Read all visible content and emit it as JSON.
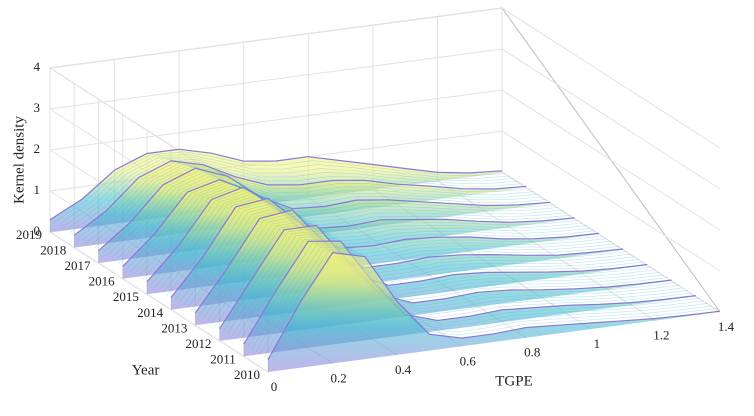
{
  "chart_data": {
    "type": "surface3d",
    "xlabel": "TGPE",
    "ylabel": "Year",
    "zlabel": "Kernel density",
    "x": [
      0,
      0.1,
      0.2,
      0.3,
      0.4,
      0.5,
      0.6,
      0.7,
      0.8,
      0.9,
      1.0,
      1.1,
      1.2,
      1.3,
      1.4
    ],
    "xlim": [
      0,
      1.4
    ],
    "xticks": [
      0,
      0.2,
      0.4,
      0.6,
      0.8,
      1,
      1.2,
      1.4
    ],
    "zlim": [
      0,
      4
    ],
    "zticks": [
      0,
      1,
      2,
      3,
      4
    ],
    "grid": true,
    "colormap": [
      "#8878d8",
      "#3cb8d0",
      "#f4f07a"
    ],
    "series": [
      {
        "name": "2010",
        "values": [
          0.3,
          1.6,
          2.7,
          2.5,
          1.3,
          0.4,
          0.2,
          0.2,
          0.25,
          0.2,
          0.15,
          0.1,
          0.05,
          0.03,
          0.02
        ]
      },
      {
        "name": "2011",
        "values": [
          0.3,
          1.5,
          2.6,
          2.5,
          1.4,
          0.5,
          0.25,
          0.25,
          0.3,
          0.25,
          0.2,
          0.12,
          0.06,
          0.03,
          0.02
        ]
      },
      {
        "name": "2012",
        "values": [
          0.3,
          1.4,
          2.5,
          2.5,
          1.5,
          0.6,
          0.3,
          0.3,
          0.35,
          0.3,
          0.2,
          0.12,
          0.06,
          0.03,
          0.02
        ]
      },
      {
        "name": "2013",
        "values": [
          0.3,
          1.3,
          2.4,
          2.5,
          1.6,
          0.7,
          0.35,
          0.35,
          0.4,
          0.35,
          0.25,
          0.15,
          0.07,
          0.03,
          0.02
        ]
      },
      {
        "name": "2014",
        "values": [
          0.3,
          1.2,
          2.3,
          2.4,
          1.7,
          0.8,
          0.4,
          0.4,
          0.45,
          0.4,
          0.3,
          0.18,
          0.08,
          0.04,
          0.02
        ]
      },
      {
        "name": "2015",
        "values": [
          0.3,
          1.1,
          2.1,
          2.3,
          1.7,
          0.9,
          0.5,
          0.45,
          0.5,
          0.45,
          0.35,
          0.2,
          0.1,
          0.04,
          0.02
        ]
      },
      {
        "name": "2016",
        "values": [
          0.3,
          1.0,
          1.9,
          2.1,
          1.7,
          1.0,
          0.6,
          0.55,
          0.6,
          0.5,
          0.4,
          0.25,
          0.12,
          0.05,
          0.02
        ]
      },
      {
        "name": "2017",
        "values": [
          0.3,
          0.9,
          1.7,
          2.0,
          1.7,
          1.1,
          0.7,
          0.65,
          0.7,
          0.6,
          0.45,
          0.3,
          0.15,
          0.06,
          0.02
        ]
      },
      {
        "name": "2018",
        "values": [
          0.3,
          0.8,
          1.5,
          1.8,
          1.6,
          1.2,
          0.9,
          0.8,
          0.8,
          0.7,
          0.5,
          0.35,
          0.18,
          0.07,
          0.03
        ]
      },
      {
        "name": "2019",
        "values": [
          0.3,
          0.7,
          1.3,
          1.6,
          1.6,
          1.4,
          1.1,
          1.0,
          1.0,
          0.8,
          0.6,
          0.4,
          0.2,
          0.08,
          0.03
        ]
      }
    ]
  }
}
